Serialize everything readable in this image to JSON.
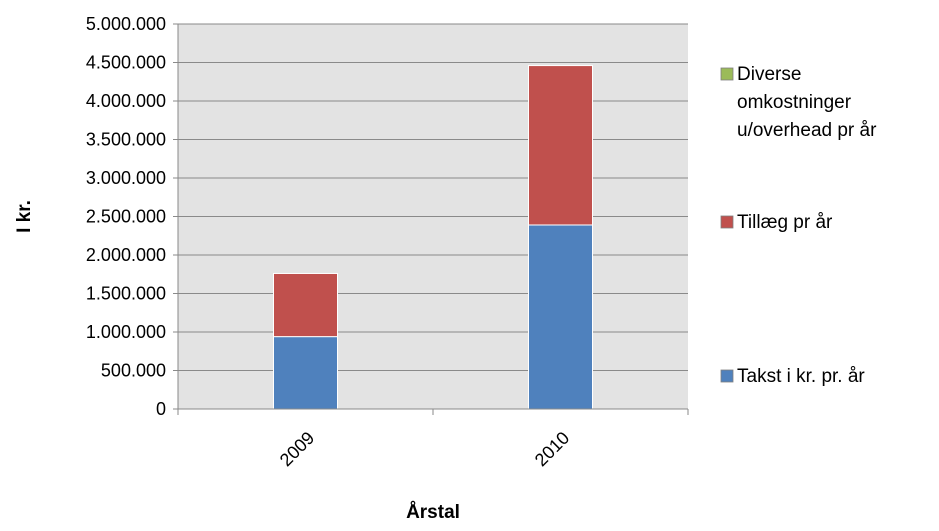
{
  "chart_data": {
    "type": "bar",
    "stacked": true,
    "categories": [
      "2009",
      "2010"
    ],
    "series": [
      {
        "name": "Takst i kr. pr. år",
        "values": [
          940000,
          2390000
        ],
        "color": "#4f81bd"
      },
      {
        "name": "Tillæg pr år",
        "values": [
          820000,
          2070000
        ],
        "color": "#c0504d"
      },
      {
        "name": "Diverse omkostninger u/overhead pr år",
        "values": [
          0,
          0
        ],
        "color": "#9bbb59"
      }
    ],
    "legend_lines": {
      "s0": [
        "Takst i kr. pr. år"
      ],
      "s1": [
        "Tillæg pr år"
      ],
      "s2": [
        "Diverse",
        "omkostninger",
        "u/overhead pr år"
      ]
    },
    "legend_order": [
      2,
      1,
      0
    ],
    "xlabel": "Årstal",
    "ylabel": "I kr.",
    "ylim": [
      0,
      5000000
    ],
    "yticks": [
      0,
      500000,
      1000000,
      1500000,
      2000000,
      2500000,
      3000000,
      3500000,
      4000000,
      4500000,
      5000000
    ],
    "ytick_labels": [
      "0",
      "500.000",
      "1.000.000",
      "1.500.000",
      "2.000.000",
      "2.500.000",
      "3.000.000",
      "3.500.000",
      "4.000.000",
      "4.500.000",
      "5.000.000"
    ],
    "grid": true,
    "plot_background": "#e3e3e3",
    "legend_position": "right"
  }
}
